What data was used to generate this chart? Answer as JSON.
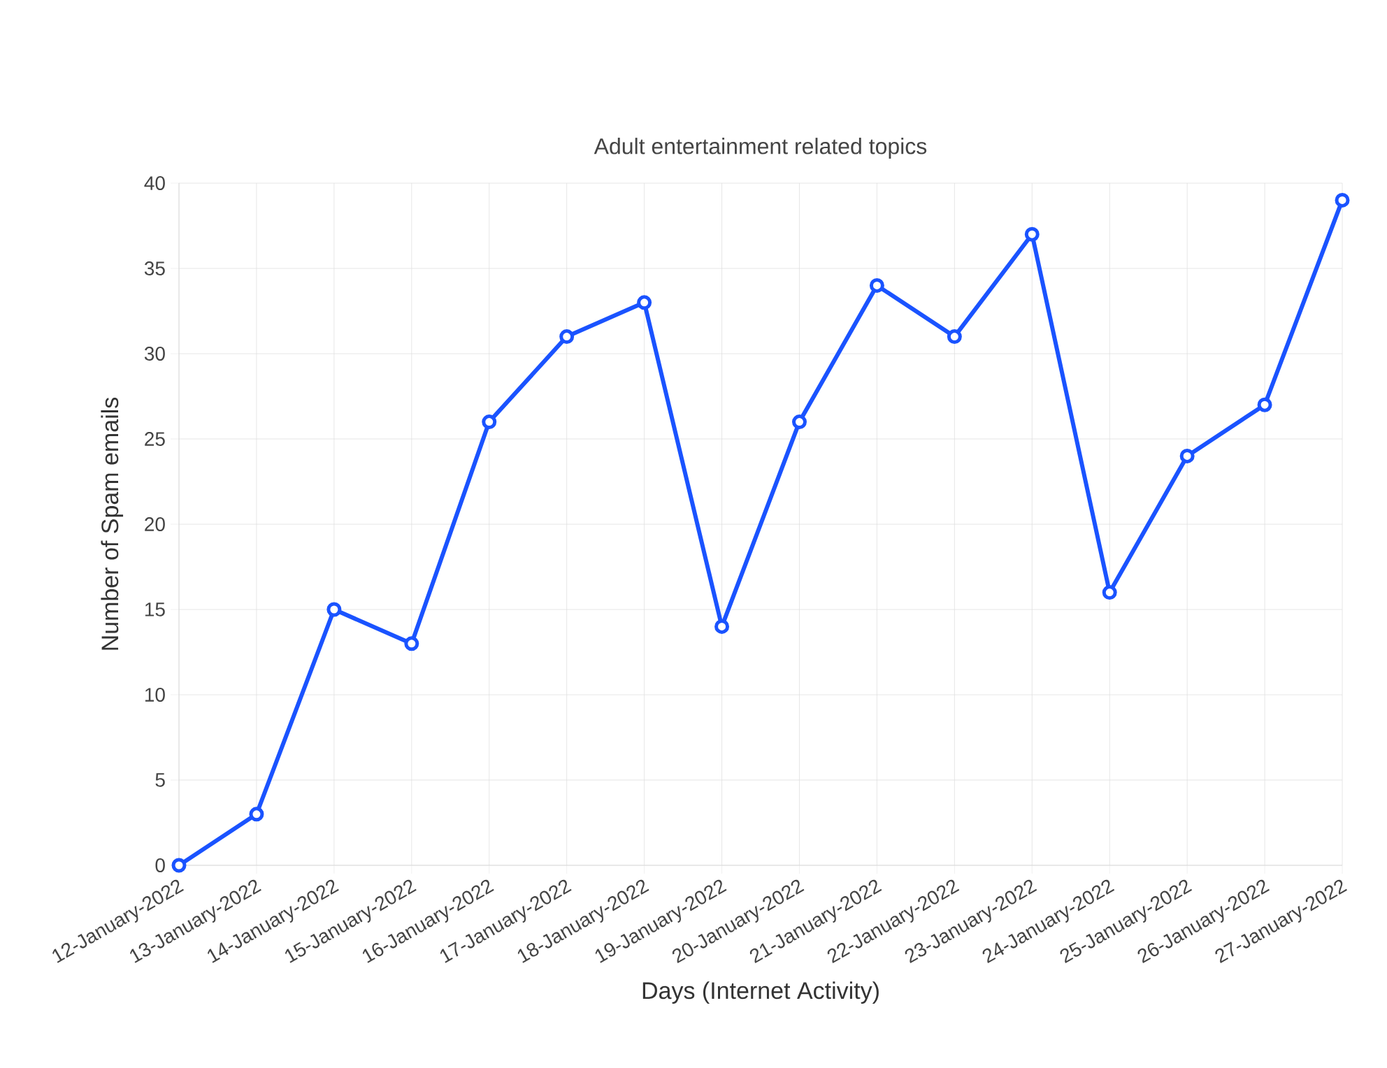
{
  "chart_data": {
    "type": "line",
    "title": "Adult entertainment related topics",
    "xlabel": "Days (Internet Activity)",
    "ylabel": "Number of Spam emails",
    "categories": [
      "12-January-2022",
      "13-January-2022",
      "14-January-2022",
      "15-January-2022",
      "16-January-2022",
      "17-January-2022",
      "18-January-2022",
      "19-January-2022",
      "20-January-2022",
      "21-January-2022",
      "22-January-2022",
      "23-January-2022",
      "24-January-2022",
      "25-January-2022",
      "26-January-2022",
      "27-January-2022"
    ],
    "values": [
      0,
      3,
      15,
      13,
      26,
      31,
      33,
      14,
      26,
      34,
      31,
      37,
      16,
      24,
      27,
      39
    ],
    "color": "#1a53ff",
    "ylim": [
      0,
      40
    ],
    "yticks": [
      0,
      5,
      10,
      15,
      20,
      25,
      30,
      35,
      40
    ],
    "grid": true,
    "marker": "circle",
    "line_style": "solid"
  }
}
